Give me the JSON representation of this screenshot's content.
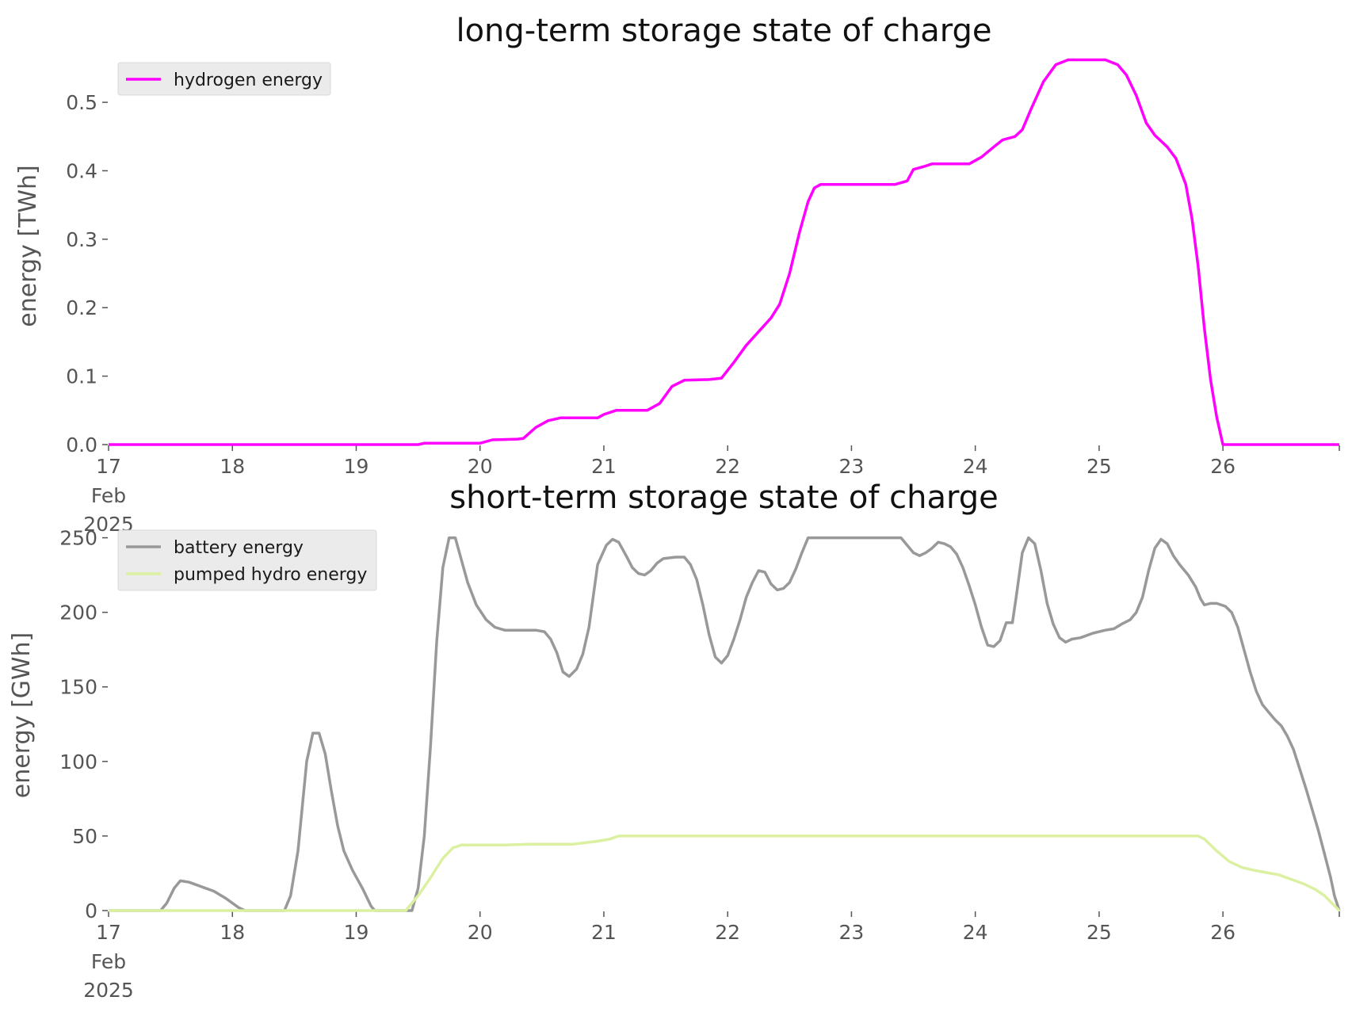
{
  "chart_data": [
    {
      "type": "line",
      "title": "long-term storage state of charge",
      "ylabel": "energy [TWh]",
      "ylim": [
        0,
        0.58
      ],
      "xlim": [
        17,
        26.94
      ],
      "yticks": [
        "0.0",
        "0.1",
        "0.2",
        "0.3",
        "0.4",
        "0.5"
      ],
      "ytick_values": [
        0,
        0.1,
        0.2,
        0.3,
        0.4,
        0.5
      ],
      "xticks": [
        "17",
        "18",
        "19",
        "20",
        "21",
        "22",
        "23",
        "24",
        "25",
        "26"
      ],
      "xtick_values": [
        17,
        18,
        19,
        20,
        21,
        22,
        23,
        24,
        25,
        26
      ],
      "xtick_sublabel": [
        "Feb",
        "2025"
      ],
      "grid": false,
      "legend": "top-left",
      "series": [
        {
          "name": "hydrogen energy",
          "color": "#ff00ff",
          "points": [
            [
              17,
              0.0
            ],
            [
              19.5,
              0.0
            ],
            [
              19.55,
              0.002
            ],
            [
              20.0,
              0.002
            ],
            [
              20.1,
              0.007
            ],
            [
              20.3,
              0.008
            ],
            [
              20.35,
              0.009
            ],
            [
              20.45,
              0.025
            ],
            [
              20.55,
              0.035
            ],
            [
              20.65,
              0.039
            ],
            [
              20.95,
              0.039
            ],
            [
              21.0,
              0.044
            ],
            [
              21.1,
              0.05
            ],
            [
              21.35,
              0.05
            ],
            [
              21.45,
              0.06
            ],
            [
              21.55,
              0.085
            ],
            [
              21.65,
              0.094
            ],
            [
              21.85,
              0.095
            ],
            [
              21.95,
              0.097
            ],
            [
              22.05,
              0.12
            ],
            [
              22.15,
              0.145
            ],
            [
              22.3,
              0.175
            ],
            [
              22.35,
              0.185
            ],
            [
              22.42,
              0.205
            ],
            [
              22.5,
              0.25
            ],
            [
              22.58,
              0.31
            ],
            [
              22.65,
              0.355
            ],
            [
              22.7,
              0.375
            ],
            [
              22.75,
              0.38
            ],
            [
              23.35,
              0.38
            ],
            [
              23.45,
              0.385
            ],
            [
              23.5,
              0.402
            ],
            [
              23.6,
              0.407
            ],
            [
              23.65,
              0.41
            ],
            [
              23.95,
              0.41
            ],
            [
              24.05,
              0.42
            ],
            [
              24.15,
              0.435
            ],
            [
              24.22,
              0.445
            ],
            [
              24.32,
              0.45
            ],
            [
              24.38,
              0.46
            ],
            [
              24.45,
              0.49
            ],
            [
              24.55,
              0.53
            ],
            [
              24.65,
              0.555
            ],
            [
              24.75,
              0.562
            ],
            [
              25.05,
              0.562
            ],
            [
              25.15,
              0.555
            ],
            [
              25.22,
              0.54
            ],
            [
              25.3,
              0.51
            ],
            [
              25.38,
              0.47
            ],
            [
              25.45,
              0.452
            ],
            [
              25.55,
              0.435
            ],
            [
              25.62,
              0.418
            ],
            [
              25.7,
              0.38
            ],
            [
              25.75,
              0.33
            ],
            [
              25.8,
              0.26
            ],
            [
              25.85,
              0.17
            ],
            [
              25.9,
              0.095
            ],
            [
              25.95,
              0.04
            ],
            [
              26.0,
              0.0
            ],
            [
              26.94,
              0.0
            ]
          ]
        }
      ]
    },
    {
      "type": "line",
      "title": "short-term storage state of charge",
      "ylabel": "energy [GWh]",
      "ylim": [
        0,
        262
      ],
      "xlim": [
        17,
        26.94
      ],
      "yticks": [
        "0",
        "50",
        "100",
        "150",
        "200",
        "250"
      ],
      "ytick_values": [
        0,
        50,
        100,
        150,
        200,
        250
      ],
      "xticks": [
        "17",
        "18",
        "19",
        "20",
        "21",
        "22",
        "23",
        "24",
        "25",
        "26"
      ],
      "xtick_values": [
        17,
        18,
        19,
        20,
        21,
        22,
        23,
        24,
        25,
        26
      ],
      "xtick_sublabel": [
        "Feb",
        "2025"
      ],
      "grid": false,
      "legend": "top-left",
      "series": [
        {
          "name": "battery energy",
          "color": "#999999",
          "points": [
            [
              17,
              0
            ],
            [
              17.42,
              0
            ],
            [
              17.47,
              5
            ],
            [
              17.53,
              15
            ],
            [
              17.58,
              20
            ],
            [
              17.65,
              19
            ],
            [
              17.75,
              16
            ],
            [
              17.85,
              13
            ],
            [
              17.95,
              8
            ],
            [
              18.05,
              2
            ],
            [
              18.1,
              0
            ],
            [
              18.42,
              0
            ],
            [
              18.47,
              10
            ],
            [
              18.53,
              40
            ],
            [
              18.6,
              100
            ],
            [
              18.65,
              119
            ],
            [
              18.7,
              119
            ],
            [
              18.75,
              105
            ],
            [
              18.8,
              80
            ],
            [
              18.85,
              57
            ],
            [
              18.9,
              40
            ],
            [
              18.97,
              27
            ],
            [
              19.05,
              15
            ],
            [
              19.12,
              3
            ],
            [
              19.15,
              0
            ],
            [
              19.45,
              0
            ],
            [
              19.5,
              15
            ],
            [
              19.55,
              50
            ],
            [
              19.6,
              110
            ],
            [
              19.65,
              180
            ],
            [
              19.7,
              230
            ],
            [
              19.75,
              250
            ],
            [
              19.8,
              250
            ],
            [
              19.85,
              235
            ],
            [
              19.9,
              220
            ],
            [
              19.97,
              205
            ],
            [
              20.05,
              195
            ],
            [
              20.12,
              190
            ],
            [
              20.2,
              188
            ],
            [
              20.45,
              188
            ],
            [
              20.52,
              187
            ],
            [
              20.57,
              182
            ],
            [
              20.62,
              173
            ],
            [
              20.67,
              160
            ],
            [
              20.72,
              157
            ],
            [
              20.78,
              162
            ],
            [
              20.83,
              172
            ],
            [
              20.88,
              190
            ],
            [
              20.95,
              232
            ],
            [
              21.02,
              245
            ],
            [
              21.07,
              249
            ],
            [
              21.12,
              247
            ],
            [
              21.18,
              238
            ],
            [
              21.23,
              230
            ],
            [
              21.28,
              226
            ],
            [
              21.33,
              225
            ],
            [
              21.38,
              228
            ],
            [
              21.43,
              233
            ],
            [
              21.48,
              236
            ],
            [
              21.58,
              237
            ],
            [
              21.65,
              237
            ],
            [
              21.7,
              232
            ],
            [
              21.75,
              222
            ],
            [
              21.8,
              205
            ],
            [
              21.85,
              185
            ],
            [
              21.9,
              170
            ],
            [
              21.95,
              166
            ],
            [
              22.0,
              171
            ],
            [
              22.05,
              182
            ],
            [
              22.1,
              195
            ],
            [
              22.15,
              210
            ],
            [
              22.2,
              220
            ],
            [
              22.25,
              228
            ],
            [
              22.3,
              227
            ],
            [
              22.35,
              219
            ],
            [
              22.4,
              215
            ],
            [
              22.45,
              216
            ],
            [
              22.5,
              220
            ],
            [
              22.55,
              229
            ],
            [
              22.6,
              240
            ],
            [
              22.65,
              250
            ],
            [
              23.4,
              250
            ],
            [
              23.45,
              245
            ],
            [
              23.5,
              240
            ],
            [
              23.55,
              238
            ],
            [
              23.6,
              240
            ],
            [
              23.65,
              243
            ],
            [
              23.7,
              247
            ],
            [
              23.75,
              246
            ],
            [
              23.8,
              244
            ],
            [
              23.85,
              239
            ],
            [
              23.9,
              230
            ],
            [
              23.95,
              218
            ],
            [
              24.0,
              205
            ],
            [
              24.05,
              190
            ],
            [
              24.1,
              178
            ],
            [
              24.15,
              177
            ],
            [
              24.2,
              181
            ],
            [
              24.25,
              193
            ],
            [
              24.3,
              193
            ],
            [
              24.33,
              210
            ],
            [
              24.38,
              240
            ],
            [
              24.43,
              250
            ],
            [
              24.48,
              246
            ],
            [
              24.53,
              228
            ],
            [
              24.58,
              206
            ],
            [
              24.63,
              192
            ],
            [
              24.68,
              183
            ],
            [
              24.73,
              180
            ],
            [
              24.78,
              182
            ],
            [
              24.85,
              183
            ],
            [
              24.95,
              186
            ],
            [
              25.05,
              188
            ],
            [
              25.12,
              189
            ],
            [
              25.18,
              192
            ],
            [
              25.25,
              195
            ],
            [
              25.3,
              200
            ],
            [
              25.35,
              210
            ],
            [
              25.4,
              228
            ],
            [
              25.45,
              243
            ],
            [
              25.5,
              249
            ],
            [
              25.55,
              246
            ],
            [
              25.6,
              238
            ],
            [
              25.65,
              232
            ],
            [
              25.72,
              225
            ],
            [
              25.78,
              217
            ],
            [
              25.82,
              209
            ],
            [
              25.85,
              205
            ],
            [
              25.9,
              206
            ],
            [
              25.95,
              206
            ],
            [
              26.02,
              204
            ],
            [
              26.07,
              200
            ],
            [
              26.12,
              190
            ],
            [
              26.17,
              175
            ],
            [
              26.22,
              160
            ],
            [
              26.27,
              147
            ],
            [
              26.32,
              138
            ],
            [
              26.37,
              133
            ],
            [
              26.42,
              128
            ],
            [
              26.47,
              124
            ],
            [
              26.52,
              117
            ],
            [
              26.57,
              108
            ],
            [
              26.62,
              95
            ],
            [
              26.67,
              82
            ],
            [
              26.72,
              68
            ],
            [
              26.77,
              54
            ],
            [
              26.82,
              38
            ],
            [
              26.87,
              22
            ],
            [
              26.9,
              10
            ],
            [
              26.94,
              0
            ]
          ]
        },
        {
          "name": "pumped hydro energy",
          "color": "#dbf0a0",
          "points": [
            [
              17,
              0
            ],
            [
              19.4,
              0
            ],
            [
              19.5,
              10
            ],
            [
              19.6,
              22
            ],
            [
              19.7,
              35
            ],
            [
              19.78,
              42
            ],
            [
              19.85,
              44
            ],
            [
              20.2,
              44
            ],
            [
              20.4,
              44.5
            ],
            [
              20.75,
              44.5
            ],
            [
              20.85,
              45.5
            ],
            [
              20.95,
              46.5
            ],
            [
              21.05,
              48
            ],
            [
              21.12,
              50
            ],
            [
              25.8,
              50
            ],
            [
              25.85,
              48
            ],
            [
              25.9,
              44
            ],
            [
              25.95,
              40
            ],
            [
              26.05,
              33
            ],
            [
              26.15,
              29
            ],
            [
              26.25,
              27
            ],
            [
              26.35,
              25.5
            ],
            [
              26.45,
              24
            ],
            [
              26.55,
              21
            ],
            [
              26.65,
              18
            ],
            [
              26.75,
              14
            ],
            [
              26.82,
              10
            ],
            [
              26.88,
              5
            ],
            [
              26.94,
              0
            ]
          ]
        }
      ]
    }
  ]
}
